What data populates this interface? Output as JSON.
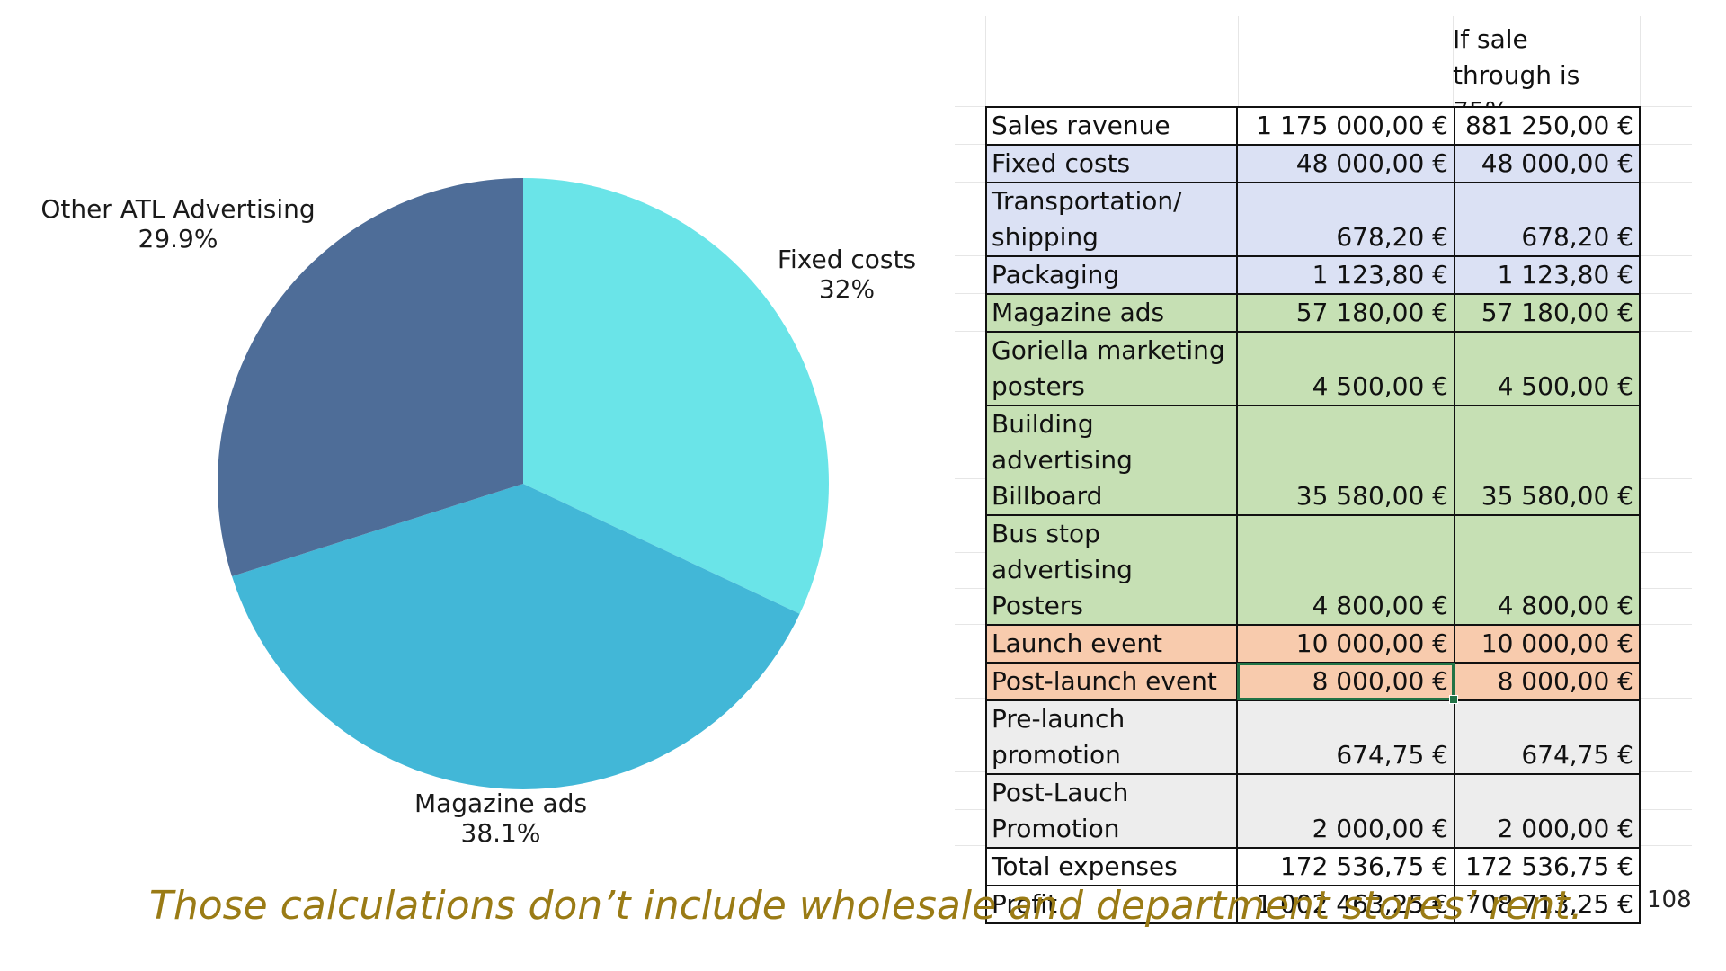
{
  "chart_data": {
    "type": "pie",
    "slices": [
      {
        "label": "Fixed costs",
        "value": 32,
        "display": "32%",
        "color": "#6ae4e8"
      },
      {
        "label": "Magazine ads",
        "value": 38.1,
        "display": "38.1%",
        "color": "#42b7d7"
      },
      {
        "label": "Other ATL Advertising",
        "value": 29.9,
        "display": "29.9%",
        "color": "#4e6d98"
      }
    ]
  },
  "table": {
    "header": [
      "",
      "",
      "If sale through is 75%"
    ],
    "rows": [
      {
        "label": "Sales ravenue",
        "v1": "1 175 000,00 €",
        "v2": "881 250,00 €",
        "fill": "#ffffff"
      },
      {
        "label": "Fixed costs",
        "v1": "48 000,00 €",
        "v2": "48 000,00 €",
        "fill": "#dbe1f4"
      },
      {
        "label": "Transportation/ shipping",
        "v1": "678,20 €",
        "v2": "678,20 €",
        "fill": "#dbe1f4"
      },
      {
        "label": "Packaging",
        "v1": "1 123,80 €",
        "v2": "1 123,80 €",
        "fill": "#dbe1f4"
      },
      {
        "label": "Magazine ads",
        "v1": "57 180,00 €",
        "v2": "57 180,00 €",
        "fill": "#c6e0b4"
      },
      {
        "label": "Goriella marketing posters",
        "v1": "4 500,00 €",
        "v2": "4 500,00 €",
        "fill": "#c6e0b4"
      },
      {
        "label": "Building advertising Billboard",
        "v1": "35 580,00 €",
        "v2": "35 580,00 €",
        "fill": "#c6e0b4"
      },
      {
        "label": "Bus stop advertising Posters",
        "v1": "4 800,00 €",
        "v2": "4 800,00 €",
        "fill": "#c6e0b4"
      },
      {
        "label": "Launch event",
        "v1": "10 000,00 €",
        "v2": "10 000,00 €",
        "fill": "#f8cbad"
      },
      {
        "label": "Post-launch event",
        "v1": "8 000,00 €",
        "v2": "8 000,00 €",
        "fill": "#f8cbad"
      },
      {
        "label": "Pre-launch promotion",
        "v1": "674,75 €",
        "v2": "674,75 €",
        "fill": "#ededed"
      },
      {
        "label": "Post-Lauch Promotion",
        "v1": "2 000,00 €",
        "v2": "2 000,00 €",
        "fill": "#ededed"
      },
      {
        "label": "Total expenses",
        "v1": "172 536,75 €",
        "v2": "172 536,75 €",
        "fill": "#ffffff"
      },
      {
        "label": "Profit",
        "v1": "1 002 463,25 €",
        "v2": "708 713,25 €",
        "fill": "#ffffff"
      }
    ]
  },
  "footnote": "Those calculations don’t include wholesale and department stores’ rent.",
  "page_number": "108"
}
